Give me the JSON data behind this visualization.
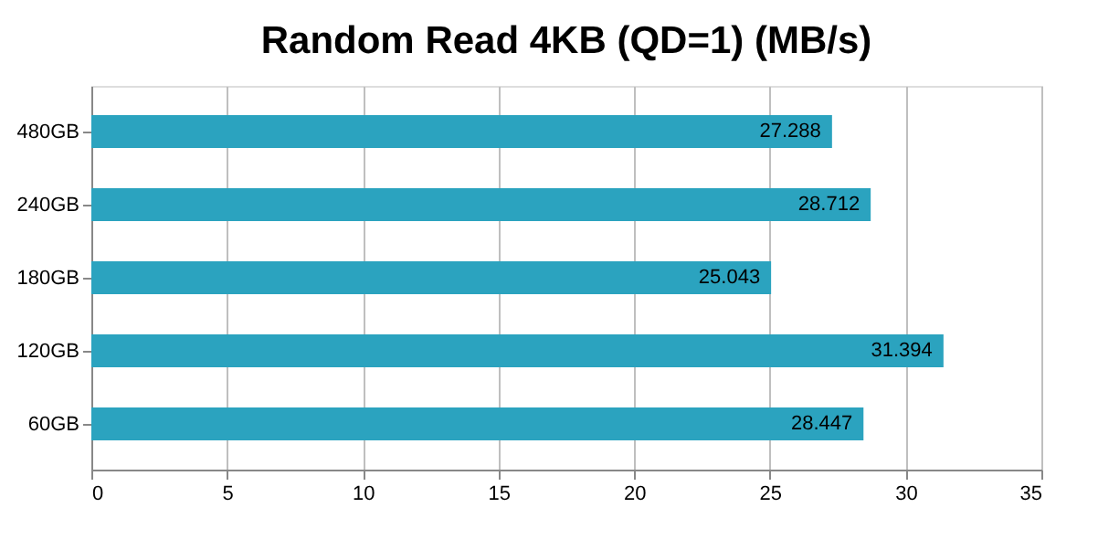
{
  "chart_data": {
    "type": "bar",
    "orientation": "horizontal",
    "title": "Random Read 4KB (QD=1) (MB/s)",
    "categories": [
      "480GB",
      "240GB",
      "180GB",
      "120GB",
      "60GB"
    ],
    "values": [
      27.288,
      28.712,
      25.043,
      31.394,
      28.447
    ],
    "color": "#2ba3bf",
    "xlim": [
      0,
      35
    ],
    "xticks": [
      0,
      5,
      10,
      15,
      20,
      25,
      30,
      35
    ],
    "grid": "x",
    "data_labels": true
  }
}
